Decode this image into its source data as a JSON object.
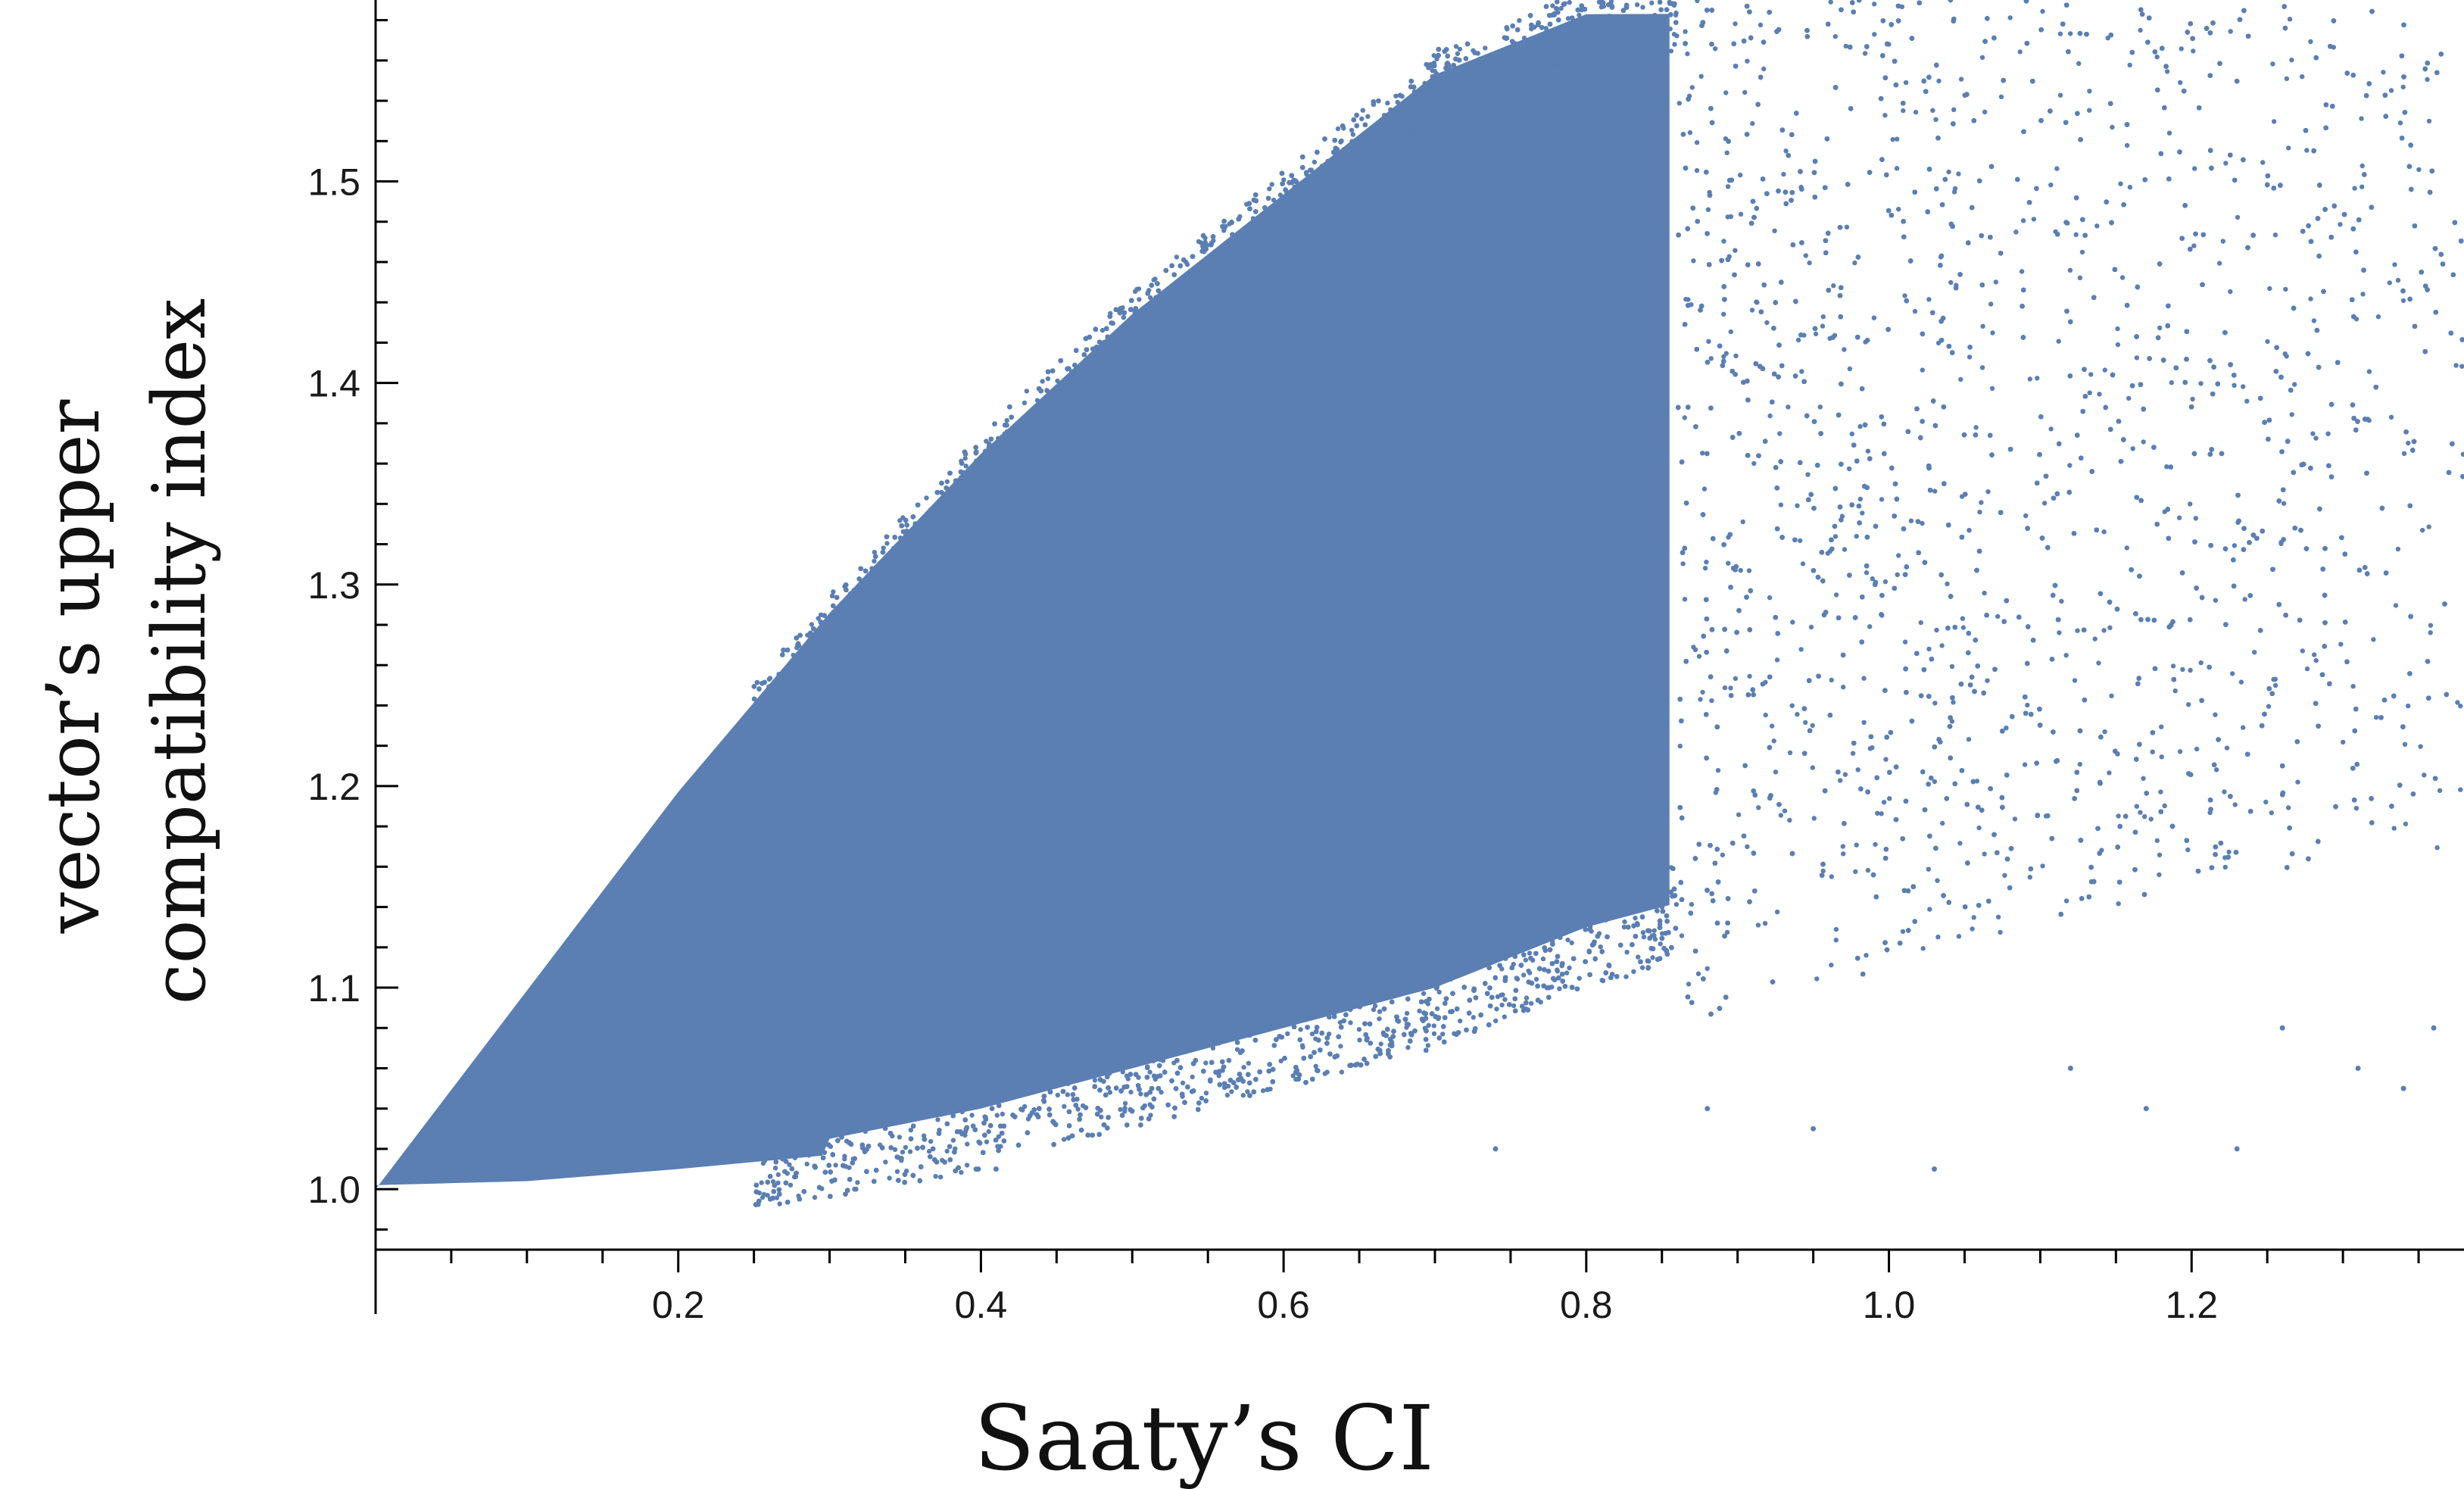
{
  "chart_data": {
    "type": "scatter",
    "title": "",
    "xlabel": "Saaty’s CI",
    "ylabel_lines": [
      "vector’s upper",
      "compatibility index"
    ],
    "xlim": [
      0,
      1.38
    ],
    "ylim": [
      0.97,
      1.59
    ],
    "x_ticks": [
      {
        "value": 0.2,
        "label": "0.2"
      },
      {
        "value": 0.4,
        "label": "0.4"
      },
      {
        "value": 0.6,
        "label": "0.6"
      },
      {
        "value": 0.8,
        "label": "0.8"
      },
      {
        "value": 1.0,
        "label": "1.0"
      },
      {
        "value": 1.2,
        "label": "1.2"
      }
    ],
    "y_ticks": [
      {
        "value": 1.0,
        "label": "1.0"
      },
      {
        "value": 1.1,
        "label": "1.1"
      },
      {
        "value": 1.2,
        "label": "1.2"
      },
      {
        "value": 1.3,
        "label": "1.3"
      },
      {
        "value": 1.4,
        "label": "1.4"
      },
      {
        "value": 1.5,
        "label": "1.5"
      }
    ],
    "grid": false,
    "marker_color": "#5B7FB3",
    "axis_color": "#000000",
    "series": [
      {
        "description_of_extent": "dense cloud starting at (0, 1.0); upper edge rises along roughly y = 1 + 1.0*x until y ≈ 1.59 near x ≈ 0.7; lower edge rises slowly from 1.0 through ≈1.03 at x=0.4 to ≈1.2 at x≈1.25; points thin out beyond x ≈ 1.0",
        "envelope": [
          {
            "x": 0.0,
            "y_low": 1.0,
            "y_high": 1.0
          },
          {
            "x": 0.1,
            "y_low": 1.002,
            "y_high": 1.1
          },
          {
            "x": 0.2,
            "y_low": 1.008,
            "y_high": 1.2
          },
          {
            "x": 0.3,
            "y_low": 1.015,
            "y_high": 1.29
          },
          {
            "x": 0.4,
            "y_low": 1.03,
            "y_high": 1.37
          },
          {
            "x": 0.5,
            "y_low": 1.05,
            "y_high": 1.44
          },
          {
            "x": 0.6,
            "y_low": 1.07,
            "y_high": 1.5
          },
          {
            "x": 0.7,
            "y_low": 1.09,
            "y_high": 1.56
          },
          {
            "x": 0.8,
            "y_low": 1.12,
            "y_high": 1.59
          },
          {
            "x": 0.9,
            "y_low": 1.14,
            "y_high": 1.59
          },
          {
            "x": 1.0,
            "y_low": 1.16,
            "y_high": 1.59
          },
          {
            "x": 1.1,
            "y_low": 1.18,
            "y_high": 1.59
          },
          {
            "x": 1.2,
            "y_low": 1.2,
            "y_high": 1.59
          },
          {
            "x": 1.38,
            "y_low": 1.22,
            "y_high": 1.59
          }
        ],
        "outliers": [
          [
            0.41,
            1.01
          ],
          [
            1.03,
            1.01
          ],
          [
            1.23,
            1.02
          ],
          [
            1.34,
            1.05
          ],
          [
            1.31,
            1.06
          ],
          [
            1.17,
            1.04
          ],
          [
            0.95,
            1.03
          ],
          [
            0.74,
            1.02
          ],
          [
            1.26,
            1.08
          ],
          [
            1.36,
            1.08
          ],
          [
            1.12,
            1.06
          ],
          [
            0.88,
            1.04
          ]
        ]
      }
    ]
  }
}
